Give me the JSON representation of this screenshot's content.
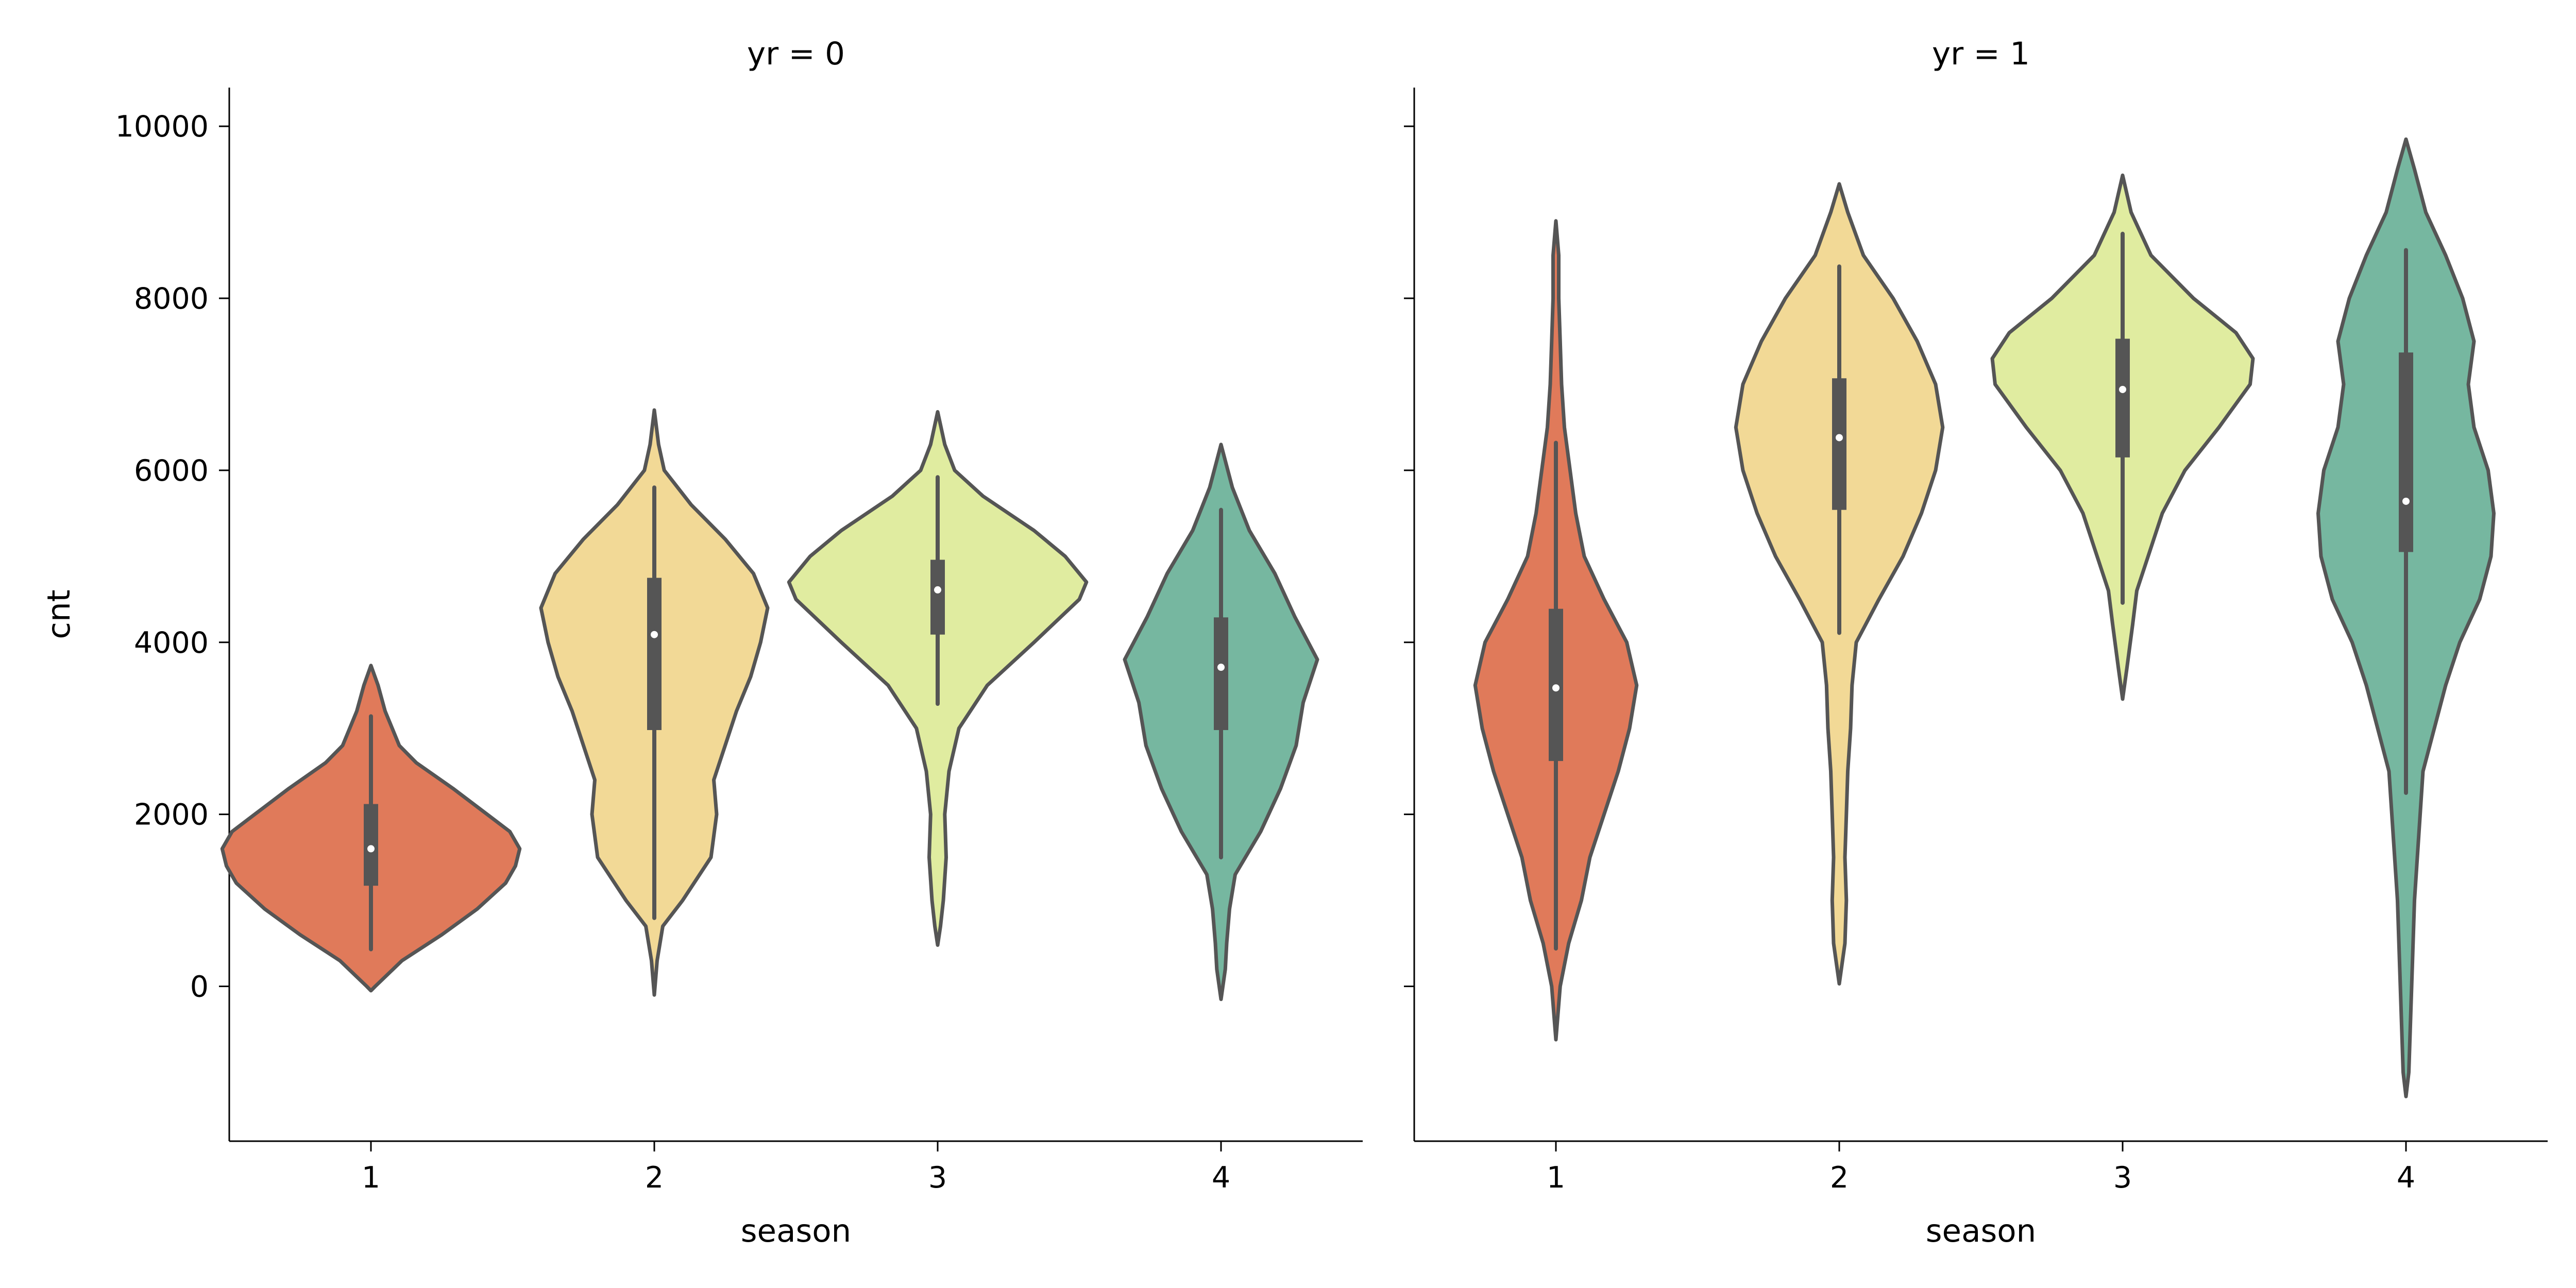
{
  "chart_data": {
    "type": "violin",
    "ylabel": "cnt",
    "yticks": [
      0,
      2000,
      4000,
      6000,
      8000,
      10000
    ],
    "ylim": [
      -1800,
      10450
    ],
    "colors": {
      "1": "#e07a5a",
      "2": "#f2d996",
      "3": "#e0eca0",
      "4": "#76b7a0",
      "outline": "#555555"
    },
    "panels": [
      {
        "title": "yr = 0",
        "xlabel": "season",
        "categories": [
          "1",
          "2",
          "3",
          "4"
        ],
        "violins": [
          {
            "category": "1",
            "median": 1600,
            "q1": 1170,
            "q3": 2120,
            "whisker_low": 431,
            "whisker_high": 3140,
            "profile": [
              [
                -50,
                0
              ],
              [
                0,
                3
              ],
              [
                300,
                22
              ],
              [
                600,
                50
              ],
              [
                900,
                75
              ],
              [
                1200,
                95
              ],
              [
                1400,
                102
              ],
              [
                1600,
                105
              ],
              [
                1800,
                98
              ],
              [
                2000,
                82
              ],
              [
                2300,
                58
              ],
              [
                2600,
                32
              ],
              [
                2800,
                20
              ],
              [
                3000,
                15
              ],
              [
                3200,
                10
              ],
              [
                3500,
                5
              ],
              [
                3730,
                0
              ]
            ]
          },
          {
            "category": "2",
            "median": 4090,
            "q1": 2980,
            "q3": 4750,
            "whisker_low": 795,
            "whisker_high": 5800,
            "profile": [
              [
                -100,
                0
              ],
              [
                300,
                2
              ],
              [
                700,
                6
              ],
              [
                1000,
                20
              ],
              [
                1500,
                40
              ],
              [
                2000,
                44
              ],
              [
                2400,
                42
              ],
              [
                2800,
                50
              ],
              [
                3200,
                58
              ],
              [
                3600,
                68
              ],
              [
                4000,
                75
              ],
              [
                4400,
                80
              ],
              [
                4800,
                70
              ],
              [
                5200,
                50
              ],
              [
                5600,
                26
              ],
              [
                6000,
                7
              ],
              [
                6300,
                3
              ],
              [
                6700,
                0
              ]
            ]
          },
          {
            "category": "3",
            "median": 4610,
            "q1": 4090,
            "q3": 4960,
            "whisker_low": 3285,
            "whisker_high": 5920,
            "profile": [
              [
                480,
                0
              ],
              [
                700,
                2
              ],
              [
                1000,
                4
              ],
              [
                1500,
                6
              ],
              [
                2000,
                5
              ],
              [
                2500,
                8
              ],
              [
                3000,
                15
              ],
              [
                3500,
                35
              ],
              [
                4000,
                68
              ],
              [
                4500,
                100
              ],
              [
                4700,
                105
              ],
              [
                5000,
                90
              ],
              [
                5300,
                68
              ],
              [
                5700,
                32
              ],
              [
                6000,
                12
              ],
              [
                6300,
                5
              ],
              [
                6680,
                0
              ]
            ]
          },
          {
            "category": "4",
            "median": 3710,
            "q1": 2980,
            "q3": 4290,
            "whisker_low": 1500,
            "whisker_high": 5540,
            "profile": [
              [
                -150,
                0
              ],
              [
                200,
                3
              ],
              [
                500,
                4
              ],
              [
                900,
                6
              ],
              [
                1300,
                10
              ],
              [
                1800,
                28
              ],
              [
                2300,
                42
              ],
              [
                2800,
                53
              ],
              [
                3300,
                58
              ],
              [
                3800,
                68
              ],
              [
                4300,
                52
              ],
              [
                4800,
                38
              ],
              [
                5300,
                20
              ],
              [
                5800,
                8
              ],
              [
                6300,
                0
              ]
            ]
          }
        ]
      },
      {
        "title": "yr = 1",
        "xlabel": "season",
        "categories": [
          "1",
          "2",
          "3",
          "4"
        ],
        "violins": [
          {
            "category": "1",
            "median": 3470,
            "q1": 2620,
            "q3": 4390,
            "whisker_low": 440,
            "whisker_high": 6320,
            "profile": [
              [
                -620,
                0
              ],
              [
                0,
                3
              ],
              [
                500,
                9
              ],
              [
                1000,
                18
              ],
              [
                1500,
                24
              ],
              [
                2000,
                34
              ],
              [
                2500,
                44
              ],
              [
                3000,
                52
              ],
              [
                3500,
                57
              ],
              [
                4000,
                50
              ],
              [
                4500,
                34
              ],
              [
                5000,
                20
              ],
              [
                5500,
                14
              ],
              [
                6000,
                10
              ],
              [
                6500,
                6
              ],
              [
                7000,
                4
              ],
              [
                7500,
                3
              ],
              [
                8000,
                2
              ],
              [
                8500,
                2
              ],
              [
                8900,
                0
              ]
            ]
          },
          {
            "category": "2",
            "median": 6380,
            "q1": 5540,
            "q3": 7070,
            "whisker_low": 4110,
            "whisker_high": 8370,
            "profile": [
              [
                30,
                0
              ],
              [
                500,
                4
              ],
              [
                1000,
                5
              ],
              [
                1500,
                4
              ],
              [
                2000,
                5
              ],
              [
                2500,
                6
              ],
              [
                3000,
                8
              ],
              [
                3500,
                9
              ],
              [
                4000,
                12
              ],
              [
                4500,
                28
              ],
              [
                5000,
                45
              ],
              [
                5500,
                58
              ],
              [
                6000,
                68
              ],
              [
                6500,
                73
              ],
              [
                7000,
                68
              ],
              [
                7500,
                55
              ],
              [
                8000,
                38
              ],
              [
                8500,
                17
              ],
              [
                9000,
                6
              ],
              [
                9330,
                0
              ]
            ]
          },
          {
            "category": "3",
            "median": 6940,
            "q1": 6150,
            "q3": 7530,
            "whisker_low": 4460,
            "whisker_high": 8750,
            "profile": [
              [
                3340,
                0
              ],
              [
                3700,
                3
              ],
              [
                4200,
                7
              ],
              [
                4600,
                10
              ],
              [
                5000,
                18
              ],
              [
                5500,
                28
              ],
              [
                6000,
                44
              ],
              [
                6500,
                68
              ],
              [
                7000,
                90
              ],
              [
                7300,
                92
              ],
              [
                7600,
                80
              ],
              [
                8000,
                50
              ],
              [
                8500,
                20
              ],
              [
                9000,
                6
              ],
              [
                9430,
                0
              ]
            ]
          },
          {
            "category": "4",
            "median": 5640,
            "q1": 5050,
            "q3": 7370,
            "whisker_low": 2250,
            "whisker_high": 8560,
            "profile": [
              [
                -1280,
                0
              ],
              [
                -1000,
                2
              ],
              [
                0,
                4
              ],
              [
                1000,
                6
              ],
              [
                2000,
                10
              ],
              [
                2500,
                12
              ],
              [
                3000,
                20
              ],
              [
                3500,
                28
              ],
              [
                4000,
                38
              ],
              [
                4500,
                52
              ],
              [
                5000,
                60
              ],
              [
                5500,
                62
              ],
              [
                6000,
                58
              ],
              [
                6500,
                48
              ],
              [
                7000,
                44
              ],
              [
                7500,
                48
              ],
              [
                8000,
                40
              ],
              [
                8500,
                28
              ],
              [
                9000,
                14
              ],
              [
                9500,
                6
              ],
              [
                9850,
                0
              ]
            ]
          }
        ]
      }
    ]
  }
}
